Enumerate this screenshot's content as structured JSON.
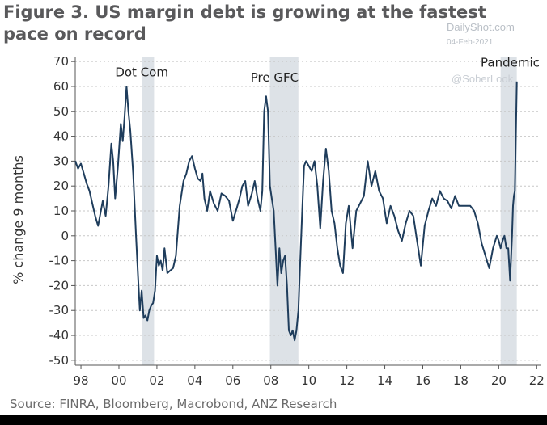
{
  "header": {
    "title_line1": "Figure 3. US margin debt is growing at the fastest",
    "title_line2": "pace on record"
  },
  "watermark": {
    "site": "DailyShot.com",
    "date": "04-Feb-2021",
    "handle": "@SoberLook"
  },
  "footer": {
    "source": "Source: FINRA, Bloomberg, Macrobond, ANZ Research"
  },
  "colors": {
    "line": "#1f3d5c",
    "shade": "#dde2e7",
    "grid": "#c7c7c7",
    "text": "#333333"
  },
  "chart_data": {
    "type": "line",
    "title": "Figure 3. US margin debt is growing at the fastest pace on record",
    "xlabel": "",
    "ylabel": "% change 9 months",
    "xlim": [
      1997.7,
      2022.2
    ],
    "ylim": [
      -52,
      72
    ],
    "yticks": [
      -50,
      -40,
      -30,
      -20,
      -10,
      0,
      10,
      20,
      30,
      40,
      50,
      60,
      70
    ],
    "xticks": [
      1998,
      2000,
      2002,
      2004,
      2006,
      2008,
      2010,
      2012,
      2014,
      2016,
      2018,
      2020,
      2022
    ],
    "xtick_labels": [
      "98",
      "00",
      "02",
      "04",
      "06",
      "08",
      "10",
      "12",
      "14",
      "16",
      "18",
      "20",
      "22"
    ],
    "grid": "horizontal dashed",
    "shaded_periods": [
      {
        "start": 2001.2,
        "end": 2001.85,
        "label": ""
      },
      {
        "start": 2007.95,
        "end": 2009.45,
        "label": ""
      },
      {
        "start": 2020.1,
        "end": 2020.95,
        "label": ""
      }
    ],
    "annotations": [
      {
        "text": "Dot Com",
        "x": 2001.2,
        "y": 64
      },
      {
        "text": "Pre GFC",
        "x": 2008.2,
        "y": 62
      },
      {
        "text": "Pandemic",
        "x": 2020.6,
        "y": 68
      }
    ],
    "series": [
      {
        "name": "US margin debt, % change 9 months",
        "x": [
          1997.7,
          1997.85,
          1998.0,
          1998.15,
          1998.3,
          1998.45,
          1998.6,
          1998.75,
          1998.9,
          1999.05,
          1999.15,
          1999.3,
          1999.45,
          1999.6,
          1999.7,
          1999.8,
          1999.95,
          2000.1,
          2000.2,
          2000.3,
          2000.4,
          2000.5,
          2000.6,
          2000.75,
          2000.9,
          2001.0,
          2001.1,
          2001.2,
          2001.3,
          2001.4,
          2001.5,
          2001.6,
          2001.7,
          2001.8,
          2001.9,
          2002.0,
          2002.1,
          2002.2,
          2002.3,
          2002.4,
          2002.55,
          2002.7,
          2002.85,
          2003.0,
          2003.2,
          2003.4,
          2003.55,
          2003.7,
          2003.85,
          2004.0,
          2004.15,
          2004.3,
          2004.4,
          2004.5,
          2004.65,
          2004.8,
          2005.0,
          2005.2,
          2005.4,
          2005.6,
          2005.8,
          2006.0,
          2006.2,
          2006.35,
          2006.5,
          2006.65,
          2006.8,
          2007.0,
          2007.15,
          2007.3,
          2007.45,
          2007.55,
          2007.65,
          2007.75,
          2007.85,
          2007.95,
          2008.05,
          2008.15,
          2008.25,
          2008.35,
          2008.45,
          2008.55,
          2008.65,
          2008.75,
          2008.85,
          2008.95,
          2009.05,
          2009.15,
          2009.25,
          2009.35,
          2009.45,
          2009.55,
          2009.65,
          2009.75,
          2009.85,
          2010.0,
          2010.15,
          2010.3,
          2010.45,
          2010.6,
          2010.75,
          2010.9,
          2011.05,
          2011.2,
          2011.35,
          2011.5,
          2011.65,
          2011.8,
          2011.95,
          2012.1,
          2012.3,
          2012.5,
          2012.7,
          2012.9,
          2013.1,
          2013.3,
          2013.5,
          2013.7,
          2013.9,
          2014.1,
          2014.3,
          2014.5,
          2014.7,
          2014.9,
          2015.1,
          2015.3,
          2015.5,
          2015.7,
          2015.9,
          2016.1,
          2016.3,
          2016.5,
          2016.7,
          2016.9,
          2017.1,
          2017.3,
          2017.5,
          2017.7,
          2017.9,
          2018.1,
          2018.3,
          2018.5,
          2018.7,
          2018.9,
          2019.1,
          2019.3,
          2019.5,
          2019.7,
          2019.9,
          2020.0,
          2020.1,
          2020.2,
          2020.3,
          2020.4,
          2020.5,
          2020.6,
          2020.7,
          2020.75,
          2020.8,
          2020.85,
          2020.9,
          2020.95
        ],
        "y": [
          30,
          27,
          29,
          25,
          21,
          18,
          13,
          8,
          4,
          10,
          14,
          8,
          20,
          37,
          30,
          15,
          28,
          45,
          38,
          48,
          60,
          50,
          42,
          25,
          0,
          -15,
          -30,
          -22,
          -33,
          -32,
          -34,
          -30,
          -28,
          -27,
          -22,
          -8,
          -12,
          -10,
          -14,
          -5,
          -15,
          -14,
          -13,
          -8,
          12,
          22,
          25,
          30,
          32,
          27,
          23,
          22,
          25,
          15,
          10,
          18,
          13,
          10,
          17,
          16,
          14,
          6,
          11,
          15,
          20,
          22,
          12,
          17,
          22,
          15,
          10,
          18,
          50,
          56,
          50,
          20,
          15,
          10,
          -5,
          -20,
          -5,
          -15,
          -10,
          -8,
          -20,
          -38,
          -40,
          -38,
          -42,
          -38,
          -30,
          -10,
          10,
          28,
          30,
          28,
          26,
          30,
          20,
          3,
          22,
          35,
          26,
          10,
          5,
          -5,
          -12,
          -15,
          5,
          12,
          -5,
          10,
          13,
          16,
          30,
          20,
          26,
          18,
          15,
          5,
          12,
          8,
          2,
          -2,
          5,
          10,
          8,
          -2,
          -12,
          4,
          10,
          15,
          12,
          18,
          15,
          14,
          11,
          16,
          12,
          12,
          12,
          12,
          10,
          5,
          -3,
          -8,
          -13,
          -5,
          0,
          -2,
          -5,
          -2,
          0,
          -5,
          -5,
          -18,
          0,
          12,
          16,
          18,
          40,
          62
        ]
      }
    ]
  }
}
